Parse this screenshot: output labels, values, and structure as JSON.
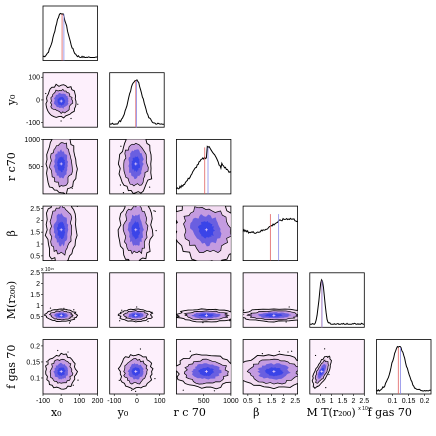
{
  "chart_data": {
    "type": "corner",
    "params": [
      {
        "key": "x0",
        "label": "x",
        "sub": "0",
        "extra": "",
        "range": [
          -100,
          200
        ],
        "ticks": [
          -100,
          0,
          100,
          200
        ],
        "tick_labels": [
          "-100",
          "0",
          "100",
          "200"
        ],
        "exponent": "",
        "center": 0,
        "width": 35,
        "median": 5,
        "truth": 15,
        "hist_shape": "gauss"
      },
      {
        "key": "y0",
        "label": "y",
        "sub": "0",
        "extra": "",
        "range": [
          -120,
          120
        ],
        "ticks": [
          -100,
          0,
          100
        ],
        "tick_labels": [
          "-100",
          "0",
          "100"
        ],
        "exponent": "",
        "center": -5,
        "width": 30,
        "median": -5,
        "truth": -2,
        "hist_shape": "gauss"
      },
      {
        "key": "rc",
        "label": "r",
        "sub": "c",
        "extra": "70",
        "range": [
          0,
          1000
        ],
        "ticks": [
          500,
          1000
        ],
        "tick_labels": [
          "500",
          "1000"
        ],
        "exponent": "",
        "center": 550,
        "width": 230,
        "median": 520,
        "truth": 580,
        "hist_shape": "skew"
      },
      {
        "key": "beta",
        "label": "β",
        "sub": "",
        "extra": "",
        "range": [
          0.3,
          2.6
        ],
        "ticks": [
          0.5,
          1,
          1.5,
          2,
          2.5
        ],
        "tick_labels": [
          "0.5",
          "1",
          "1.5",
          "2",
          "2.5"
        ],
        "exponent": "",
        "center": 1.6,
        "width": 0.6,
        "median": 1.45,
        "truth": 1.8,
        "hist_shape": "flat"
      },
      {
        "key": "mt",
        "label": "M",
        "sub": "T",
        "extra": "(r",
        "range": [
          0,
          2.5
        ],
        "ticks": [
          0.5,
          1,
          1.5,
          2,
          2.5
        ],
        "tick_labels": [
          "0.5",
          "1",
          "1.5",
          "2",
          "2.5"
        ],
        "exponent": "x 10¹⁵",
        "center": 0.55,
        "width": 0.12,
        "median": 0.55,
        "truth": 0.56,
        "hist_shape": "gauss"
      },
      {
        "key": "fgas",
        "label": "f",
        "sub": "gas",
        "extra": "70",
        "range": [
          0.05,
          0.22
        ],
        "ticks": [
          0.1,
          0.15,
          0.2
        ],
        "tick_labels": [
          "0.1",
          "0.15",
          "0.2"
        ],
        "exponent": "",
        "center": 0.12,
        "width": 0.022,
        "median": 0.118,
        "truth": 0.125,
        "hist_shape": "gauss"
      }
    ],
    "y_axis_labels": [
      {
        "row": 1,
        "text": "y₀"
      },
      {
        "row": 2,
        "text": "r c70"
      },
      {
        "row": 3,
        "text": "β"
      },
      {
        "row": 4,
        "text": "M(r₂₀₀)"
      },
      {
        "row": 5,
        "text": "f gas 70"
      }
    ],
    "x_axis_labels": [
      "x₀",
      "y₀",
      "r c 70",
      "β",
      "M T(r₂₀₀)",
      "f gas 70"
    ],
    "mt_label_suffix": "200",
    "mt_exponent": "x 10¹⁵",
    "mt_y_exponent": "x 10¹⁵",
    "colors": {
      "contour_fill_light": "#f3dcf2",
      "contour_fill_mid": "#c49be0",
      "contour_fill_dark": "#6a5fe0",
      "contour_core": "#3a44e8",
      "panel_bg": "#fdf0fc",
      "median_line": "#e06060",
      "truth_line": "#8a8ae8",
      "line": "#000000"
    },
    "grid": false,
    "legend": "none"
  }
}
